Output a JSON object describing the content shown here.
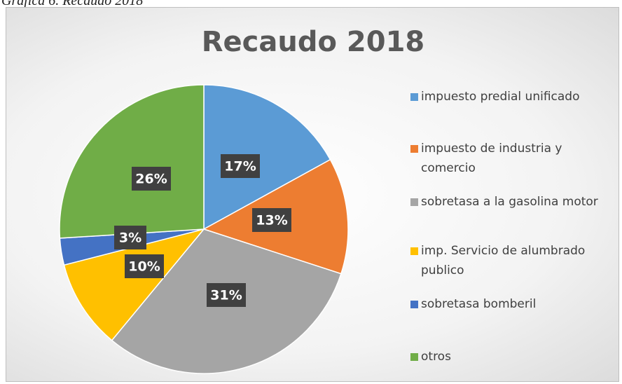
{
  "caption": "Gráfica 6. Recaudo 2018",
  "chart_data": {
    "type": "pie",
    "title": "Recaudo 2018",
    "categories": [
      "impuesto predial unificado",
      "impuesto de industria y comercio",
      "sobretasa a la gasolina motor",
      "imp. Servicio de alumbrado publico",
      "sobretasa bomberil",
      "otros"
    ],
    "values": [
      17,
      13,
      31,
      10,
      3,
      26
    ],
    "value_labels": [
      "17%",
      "13%",
      "31%",
      "10%",
      "3%",
      "26%"
    ],
    "colors": [
      "#5b9bd5",
      "#ed7d31",
      "#a5a5a5",
      "#ffc000",
      "#4472c4",
      "#70ad47"
    ],
    "legend": "right"
  }
}
